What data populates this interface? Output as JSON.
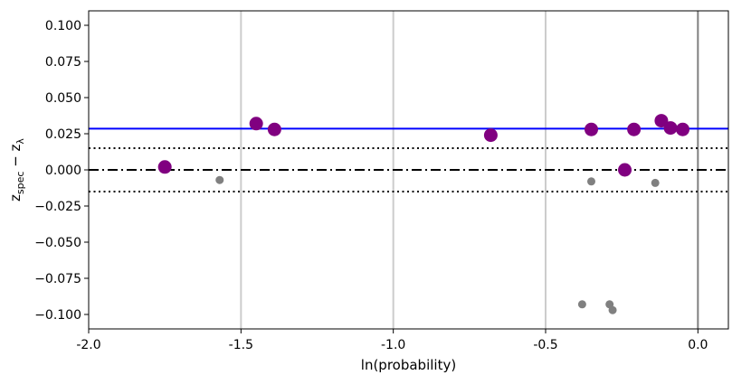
{
  "chart_data": {
    "type": "scatter",
    "title": "",
    "xlabel": "ln(probability)",
    "ylabel_main": "z",
    "ylabel_sub1": "spec",
    "ylabel_mid": " − z",
    "ylabel_sub2": "λ",
    "xlim": [
      -2.0,
      0.1
    ],
    "ylim": [
      -0.11,
      0.11
    ],
    "x_ticks": [
      -2.0,
      -1.5,
      -1.0,
      -0.5,
      0.0
    ],
    "x_tick_labels": [
      "-2.0",
      "-1.5",
      "-1.0",
      "-0.5",
      "0.0"
    ],
    "y_ticks": [
      0.1,
      0.075,
      0.05,
      0.025,
      0.0,
      -0.025,
      -0.05,
      -0.075,
      -0.1
    ],
    "y_tick_labels": [
      "0.100",
      "0.075",
      "0.050",
      "0.025",
      "0.000",
      "−0.025",
      "−0.050",
      "−0.075",
      "−0.100"
    ],
    "vertical_gridlines": [
      -1.5,
      -1.0,
      -0.5
    ],
    "vertical_line_dark": 0.0,
    "horizontal_lines": [
      {
        "y": 0.0285,
        "style": "solid",
        "color": "#0000ff"
      },
      {
        "y": 0.0,
        "style": "dashdot",
        "color": "#000000"
      },
      {
        "y": 0.015,
        "style": "dotted",
        "color": "#000000"
      },
      {
        "y": -0.015,
        "style": "dotted",
        "color": "#000000"
      }
    ],
    "series": [
      {
        "color": "#800080",
        "size": "large",
        "points": [
          {
            "x": -1.75,
            "y": 0.002
          },
          {
            "x": -1.45,
            "y": 0.032
          },
          {
            "x": -1.39,
            "y": 0.028
          },
          {
            "x": -0.68,
            "y": 0.024
          },
          {
            "x": -0.35,
            "y": 0.028
          },
          {
            "x": -0.24,
            "y": 0.0
          },
          {
            "x": -0.21,
            "y": 0.028
          },
          {
            "x": -0.12,
            "y": 0.034
          },
          {
            "x": -0.09,
            "y": 0.029
          },
          {
            "x": -0.05,
            "y": 0.028
          }
        ]
      },
      {
        "color": "#808080",
        "size": "small",
        "points": [
          {
            "x": -1.57,
            "y": -0.007
          },
          {
            "x": -0.35,
            "y": -0.008
          },
          {
            "x": -0.14,
            "y": -0.009
          },
          {
            "x": -0.38,
            "y": -0.093
          },
          {
            "x": -0.29,
            "y": -0.093
          },
          {
            "x": -0.28,
            "y": -0.097
          }
        ]
      }
    ],
    "grid": false,
    "legend": "none"
  }
}
